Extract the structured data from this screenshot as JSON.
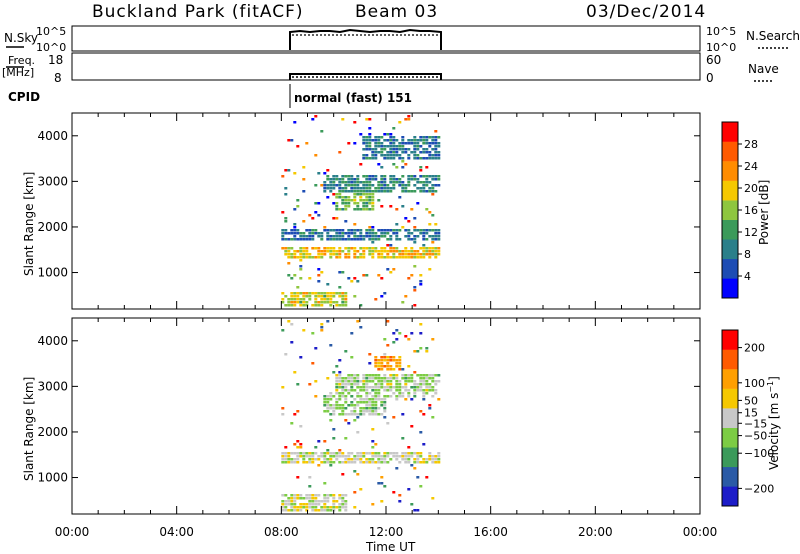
{
  "header": {
    "station": "Buckland Park (fitACF)",
    "beam": "Beam 03",
    "date": "03/Dec/2014"
  },
  "noise_panel": {
    "label": "N.Sky",
    "right_label": "N.Search",
    "left_ticks": [
      "10^5",
      "10^0"
    ],
    "right_ticks": [
      "10^5",
      "10^0"
    ]
  },
  "freq_panel": {
    "label_line1": "Freq.",
    "label_line2": "[MHz]",
    "left_ticks": [
      "18",
      "8"
    ],
    "right_ticks": [
      "60",
      "0"
    ],
    "right_label": "Nave"
  },
  "cpid": {
    "label": "CPID",
    "value": "normal (fast) 151"
  },
  "chart_data": [
    {
      "type": "heatmap",
      "quantity": "power",
      "ylabel": "Slant Range [km]",
      "xlabel": "",
      "yticks": [
        1000,
        2000,
        3000,
        4000
      ],
      "ylim": [
        200,
        4500
      ],
      "xlim_hours": [
        0,
        24
      ],
      "data_interval_hours": [
        8,
        14
      ],
      "colorbar": {
        "label": "Power [dB]",
        "ticks": [
          4,
          8,
          12,
          16,
          20,
          24,
          28
        ],
        "range": [
          0,
          32
        ],
        "colors": [
          "#0000ff",
          "#1d4cb4",
          "#2a7f8a",
          "#3b9a5a",
          "#8ec63f",
          "#f5c800",
          "#ff8c00",
          "#ff5a00",
          "#ff0000"
        ]
      },
      "features": [
        {
          "range_km": [
            1300,
            1600
          ],
          "start_h": 8.0,
          "end_h": 14.0,
          "level": 20
        },
        {
          "range_km": [
            250,
            600
          ],
          "start_h": 8.0,
          "end_h": 10.5,
          "level": 18
        },
        {
          "range_km": [
            2400,
            2800
          ],
          "start_h": 10.0,
          "end_h": 11.5,
          "level": 14
        },
        {
          "range_km": [
            2800,
            3200
          ],
          "start_h": 9.5,
          "end_h": 14.0,
          "level": 10
        },
        {
          "range_km": [
            1700,
            2000
          ],
          "start_h": 8.0,
          "end_h": 14.0,
          "level": 8
        },
        {
          "range_km": [
            3500,
            4000
          ],
          "start_h": 11.0,
          "end_h": 14.0,
          "level": 8
        }
      ]
    },
    {
      "type": "heatmap",
      "quantity": "velocity",
      "ylabel": "Slant Range [km]",
      "xlabel": "Time UT",
      "yticks": [
        1000,
        2000,
        3000,
        4000
      ],
      "ylim": [
        200,
        4500
      ],
      "xticks": [
        "00:00",
        "04:00",
        "08:00",
        "12:00",
        "16:00",
        "20:00",
        "00:00"
      ],
      "xlim_hours": [
        0,
        24
      ],
      "data_interval_hours": [
        8,
        14
      ],
      "colorbar": {
        "label": "Velocity [m s^-1]",
        "ticks": [
          200,
          100,
          50,
          15,
          -15,
          -50,
          -100,
          -200
        ],
        "range": [
          -250,
          250
        ],
        "colors": [
          "#1c1cc8",
          "#2a5aa6",
          "#3b9a5a",
          "#7ccc44",
          "#c8c8c8",
          "#f5c800",
          "#ff9f00",
          "#ff5a00",
          "#ff0000"
        ]
      },
      "features": [
        {
          "range_km": [
            1300,
            1600
          ],
          "start_h": 8.0,
          "end_h": 14.0,
          "level": 0
        },
        {
          "range_km": [
            300,
            700
          ],
          "start_h": 8.0,
          "end_h": 10.5,
          "level": 0
        },
        {
          "range_km": [
            2400,
            2900
          ],
          "start_h": 9.5,
          "end_h": 12.0,
          "level": -40
        },
        {
          "range_km": [
            2800,
            3300
          ],
          "start_h": 10.0,
          "end_h": 14.0,
          "level": -30
        },
        {
          "range_km": [
            3400,
            3700
          ],
          "start_h": 11.5,
          "end_h": 12.5,
          "level": 120
        }
      ]
    }
  ]
}
